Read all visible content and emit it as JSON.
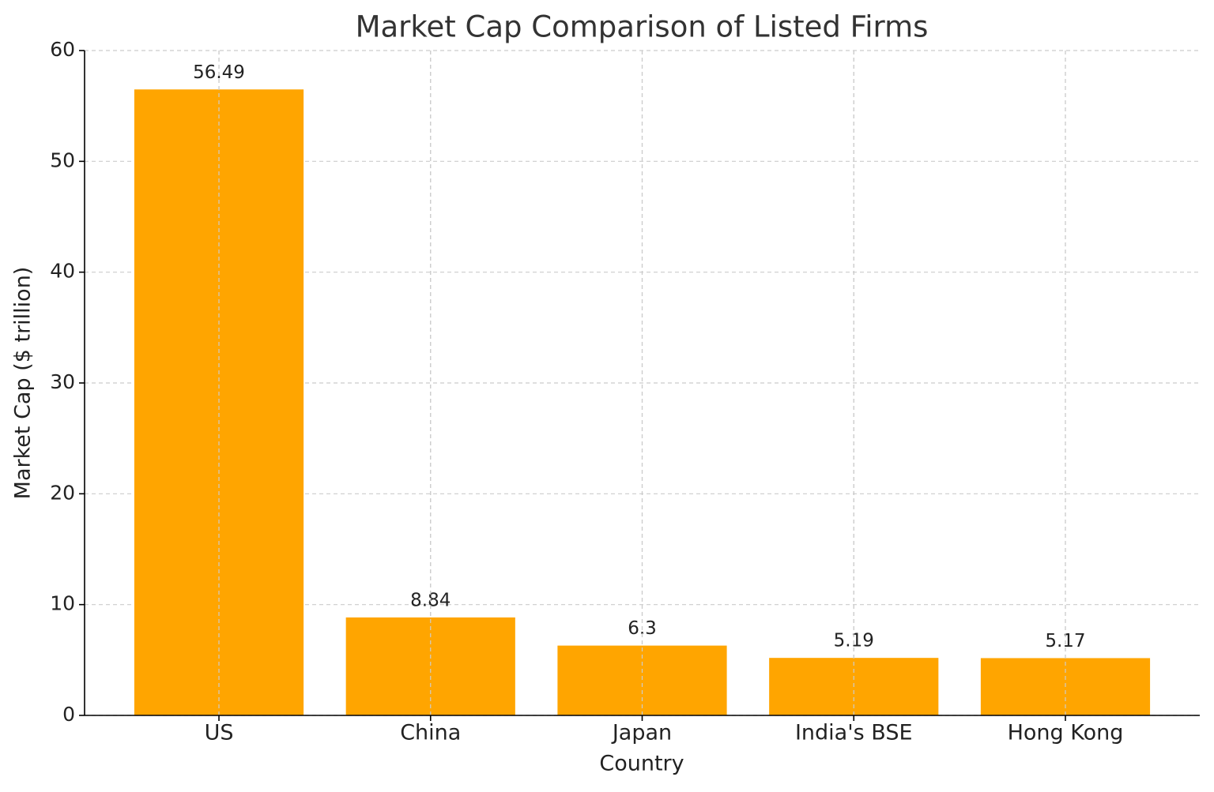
{
  "chart_data": {
    "type": "bar",
    "title": "Market Cap Comparison of Listed Firms",
    "x_label": "Country",
    "y_label": "Market Cap ($ trillion)",
    "categories": [
      "US",
      "China",
      "Japan",
      "India's BSE",
      "Hong Kong"
    ],
    "values": [
      56.49,
      8.84,
      6.3,
      5.19,
      5.17
    ],
    "color": "#ffa500",
    "ylim": [
      0,
      60
    ],
    "yticks": [
      0,
      10,
      20,
      30,
      40,
      50,
      60
    ],
    "grid": true
  }
}
